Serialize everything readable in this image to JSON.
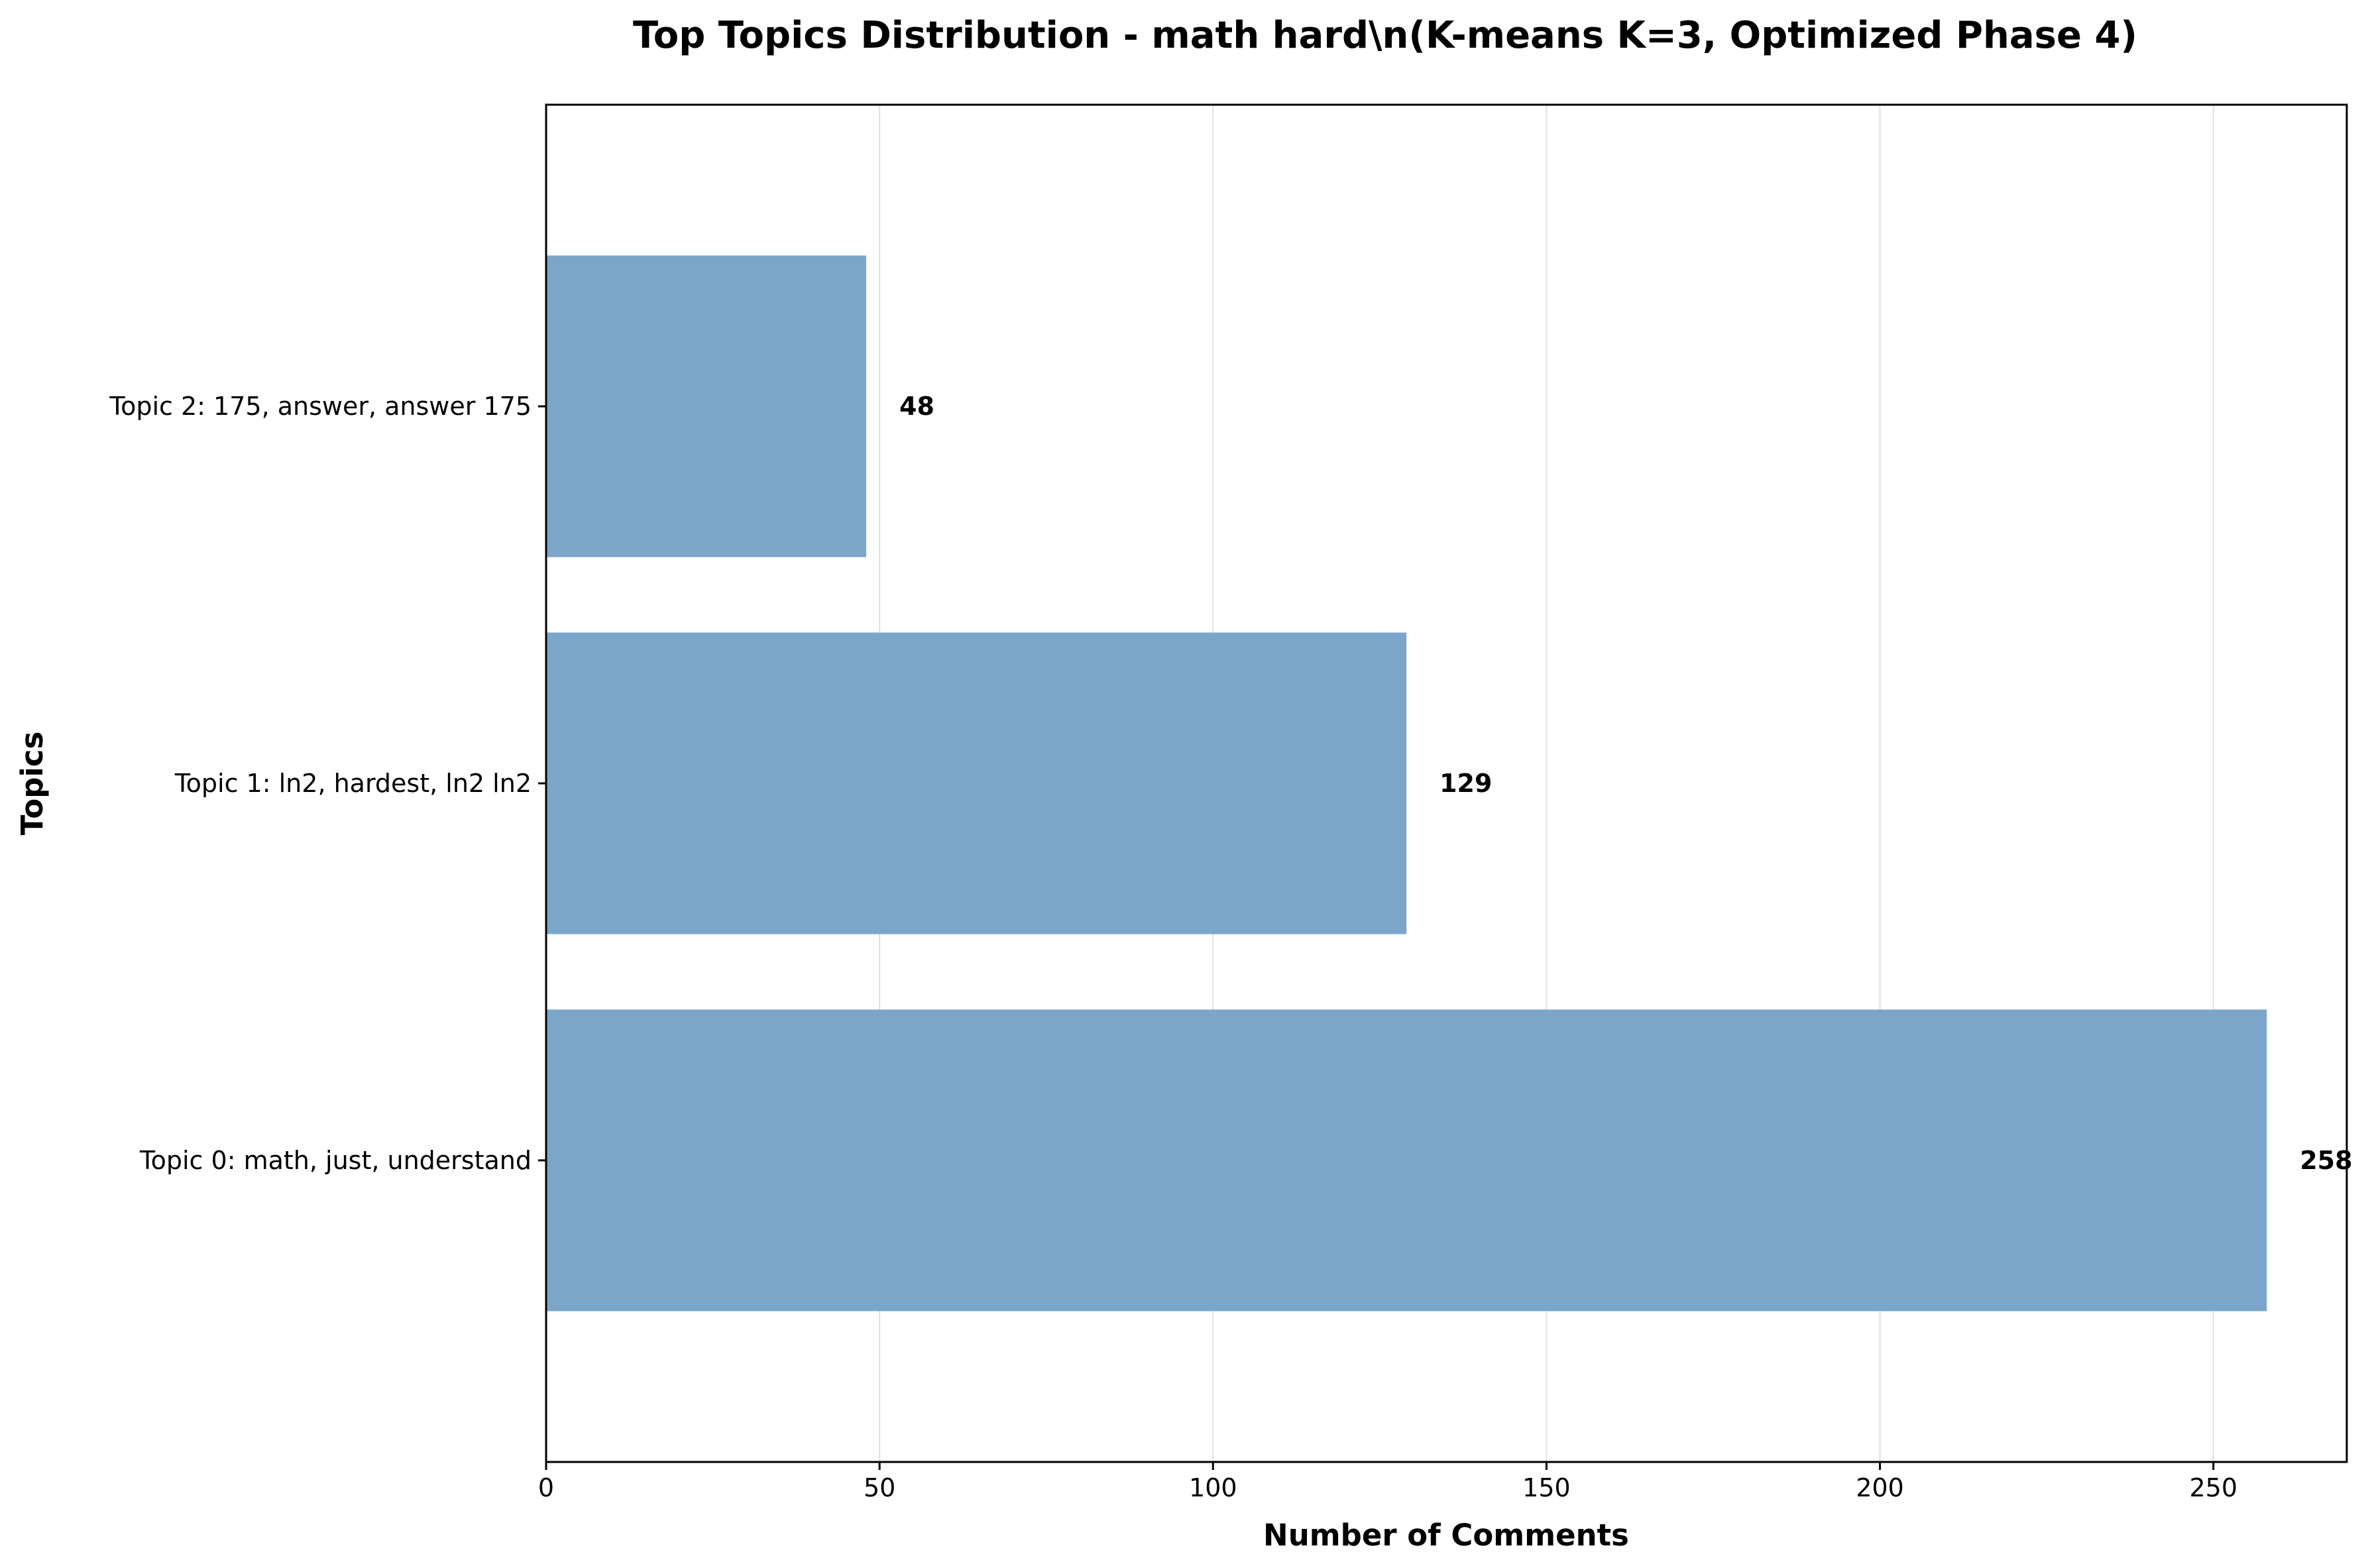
{
  "chart_data": {
    "type": "bar",
    "orientation": "horizontal",
    "title": "Top Topics Distribution - math hard\\n(K-means K=3, Optimized Phase 4)",
    "xlabel": "Number of Comments",
    "ylabel": "Topics",
    "categories": [
      "Topic 0: math, just, understand",
      "Topic 1: ln2, hardest, ln2 ln2",
      "Topic 2: 175, answer, answer 175"
    ],
    "values": [
      258,
      129,
      48
    ],
    "data_labels": [
      "258",
      "129",
      "48"
    ],
    "xlim": [
      0,
      270
    ],
    "xticks": [
      0,
      50,
      100,
      150,
      200,
      250
    ],
    "grid": "vertical, x-axis only",
    "bar_color": "#7ba6ca"
  }
}
